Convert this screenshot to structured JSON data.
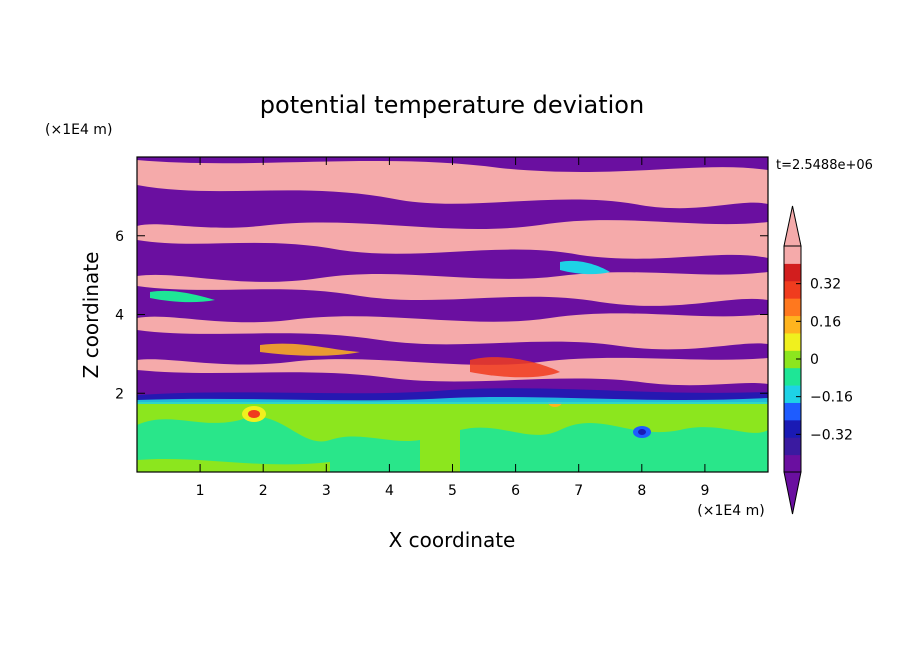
{
  "chart_data": {
    "type": "heatmap",
    "title": "potential temperature deviation",
    "xlabel": "X coordinate",
    "ylabel": "Z coordinate",
    "x_unit_label": "(×1E4 m)",
    "y_unit_label": "(×1E4 m)",
    "time_label": "t=2.5488e+06",
    "xlim": [
      0,
      10
    ],
    "ylim": [
      0,
      8
    ],
    "x_ticks": [
      "1",
      "2",
      "3",
      "4",
      "5",
      "6",
      "7",
      "8",
      "9"
    ],
    "y_ticks": [
      "2",
      "4",
      "6"
    ],
    "colorbar": {
      "levels": [
        -0.48,
        -0.4,
        -0.32,
        -0.24,
        -0.16,
        -0.08,
        0,
        0.08,
        0.16,
        0.24,
        0.32,
        0.4,
        0.48
      ],
      "tick_labels": [
        "0.32",
        "0.16",
        "0",
        "−0.16",
        "−0.32"
      ],
      "colors": [
        "#6a0fa0",
        "#3a1aa0",
        "#1a1ab4",
        "#1e5cff",
        "#1ed2e6",
        "#1ee696",
        "#8ce61e",
        "#f0f01e",
        "#ffb41e",
        "#ff781e",
        "#f03c1e",
        "#d21e1e",
        "#f5aaaa"
      ],
      "extend": "both"
    }
  }
}
